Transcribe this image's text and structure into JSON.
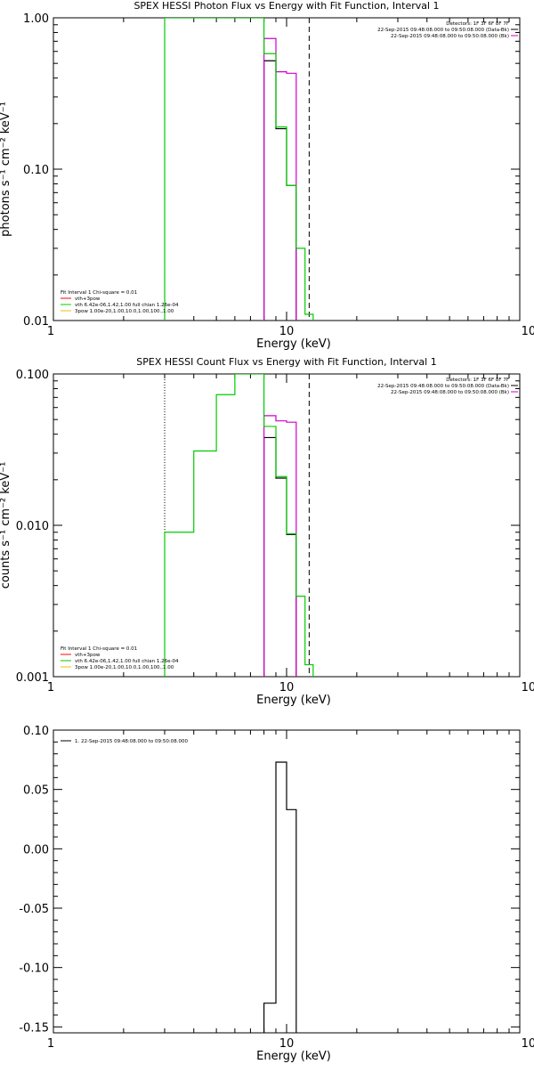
{
  "chart_data": [
    {
      "type": "line",
      "title": "SPEX HESSI Photon Flux vs Energy with Fit Function, Interval 1",
      "xlabel": "Energy (keV)",
      "ylabel": "photons s⁻¹ cm⁻² keV⁻¹",
      "xscale": "log",
      "yscale": "log",
      "xlim": [
        1,
        100
      ],
      "ylim": [
        0.01,
        1.0
      ],
      "xtick_labels": [
        "1",
        "10",
        "100"
      ],
      "ytick_values": [
        0.01,
        0.1,
        1.0
      ],
      "ytick_labels": [
        "0.01",
        "0.10",
        "1.00"
      ],
      "info_text": [
        "Detectors: 1F 3F 6F 8F 7F",
        "22-Sep-2015 09:48:08.000 to 09:50:08.000 (Data-Bk)",
        "22-Sep-2015 09:48:08.000 to 09:50:08.000 (Bk)"
      ],
      "legend_title": "Fit Interval 1   Chi-square = 0.01",
      "legend": [
        {
          "label": "vth+3pow",
          "color": "#ff0000"
        },
        {
          "label": "vth 6.42e-06,1.42,1.00  full chian 1.26e-04",
          "color": "#00cc00"
        },
        {
          "label": "3pow 1.00e-20,1.00,10.0,1.00,100.,1.00",
          "color": "#e8c000"
        }
      ],
      "vlines": [
        {
          "x": 3.0,
          "style": "dotted",
          "color": "#000000"
        },
        {
          "x": 12.5,
          "style": "dashed",
          "color": "#000000"
        }
      ],
      "series": [
        {
          "role": "data-bk",
          "color": "#000000",
          "edges": [
            8,
            9,
            10,
            11
          ],
          "values": [
            0.52,
            0.185,
            0.078
          ],
          "bottom": 0.01
        },
        {
          "role": "bk",
          "color": "#cc00cc",
          "edges": [
            8,
            9,
            10,
            11
          ],
          "values": [
            0.73,
            0.44,
            0.43
          ],
          "bottom": 0.01
        },
        {
          "role": "model",
          "color": "#00cc00",
          "edges": [
            3,
            8,
            9,
            10,
            11,
            12,
            13
          ],
          "values": [
            1.5,
            0.58,
            0.19,
            0.078,
            0.03,
            0.011
          ],
          "bottom": 0.01
        }
      ]
    },
    {
      "type": "line",
      "title": "SPEX HESSI Count Flux vs Energy with Fit Function, Interval 1",
      "xlabel": "Energy (keV)",
      "ylabel": "counts s⁻¹ cm⁻² keV⁻¹",
      "xscale": "log",
      "yscale": "log",
      "xlim": [
        1,
        100
      ],
      "ylim": [
        0.001,
        0.1
      ],
      "xtick_labels": [
        "1",
        "10",
        "100"
      ],
      "ytick_values": [
        0.001,
        0.01,
        0.1
      ],
      "ytick_labels": [
        "0.001",
        "0.010",
        "0.100"
      ],
      "info_text": [
        "Detectors: 1F 3F 6F 8F 7F",
        "22-Sep-2015 09:48:08.000 to 09:50:08.000 (Data-Bk)",
        "22-Sep-2015 09:48:08.000 to 09:50:08.000 (Bk)"
      ],
      "legend_title": "Fit Interval 1   Chi-square = 0.01",
      "legend": [
        {
          "label": "vth+3pow",
          "color": "#ff0000"
        },
        {
          "label": "vth 6.42e-06,1.42,1.00  full chian 1.26e-04",
          "color": "#00cc00"
        },
        {
          "label": "3pow 1.00e-20,1.00,10.0,1.00,100.,1.00",
          "color": "#e8c000"
        }
      ],
      "vlines": [
        {
          "x": 3.0,
          "style": "dotted",
          "color": "#000000"
        },
        {
          "x": 12.5,
          "style": "dashed",
          "color": "#000000"
        }
      ],
      "series": [
        {
          "role": "data-bk",
          "color": "#000000",
          "edges": [
            8,
            9,
            10,
            11
          ],
          "values": [
            0.038,
            0.0205,
            0.0087
          ],
          "bottom": 0.001
        },
        {
          "role": "bk",
          "color": "#cc00cc",
          "edges": [
            8,
            9,
            10,
            11
          ],
          "values": [
            0.053,
            0.049,
            0.048
          ],
          "bottom": 0.001
        },
        {
          "role": "model",
          "color": "#00cc00",
          "edges": [
            3,
            4,
            5,
            6,
            7,
            8,
            9,
            10,
            11,
            12,
            13
          ],
          "values": [
            0.009,
            0.031,
            0.073,
            0.13,
            0.1,
            0.045,
            0.021,
            0.0088,
            0.0034,
            0.0012
          ],
          "bottom": 0.001
        }
      ]
    },
    {
      "type": "line",
      "title": "",
      "xlabel": "Energy (keV)",
      "ylabel": "",
      "xscale": "log",
      "yscale": "linear",
      "xlim": [
        1,
        100
      ],
      "ylim": [
        -0.155,
        0.1
      ],
      "xtick_labels": [
        "1",
        "10",
        "100"
      ],
      "ytick_values": [
        0.1,
        0.05,
        0.0,
        -0.05,
        -0.1,
        -0.15
      ],
      "ytick_labels": [
        "0.10",
        "0.05",
        "0.00",
        "-0.05",
        "-0.10",
        "-0.15"
      ],
      "legend": [
        {
          "label": "1. 22-Sep-2015 09:48:08.000 to 09:50:08.000",
          "color": "#000000"
        }
      ],
      "series": [
        {
          "role": "residual",
          "color": "#000000",
          "edges": [
            8,
            9,
            10,
            11
          ],
          "values": [
            -0.13,
            0.073,
            0.033
          ],
          "bottom": -0.155
        }
      ]
    }
  ]
}
